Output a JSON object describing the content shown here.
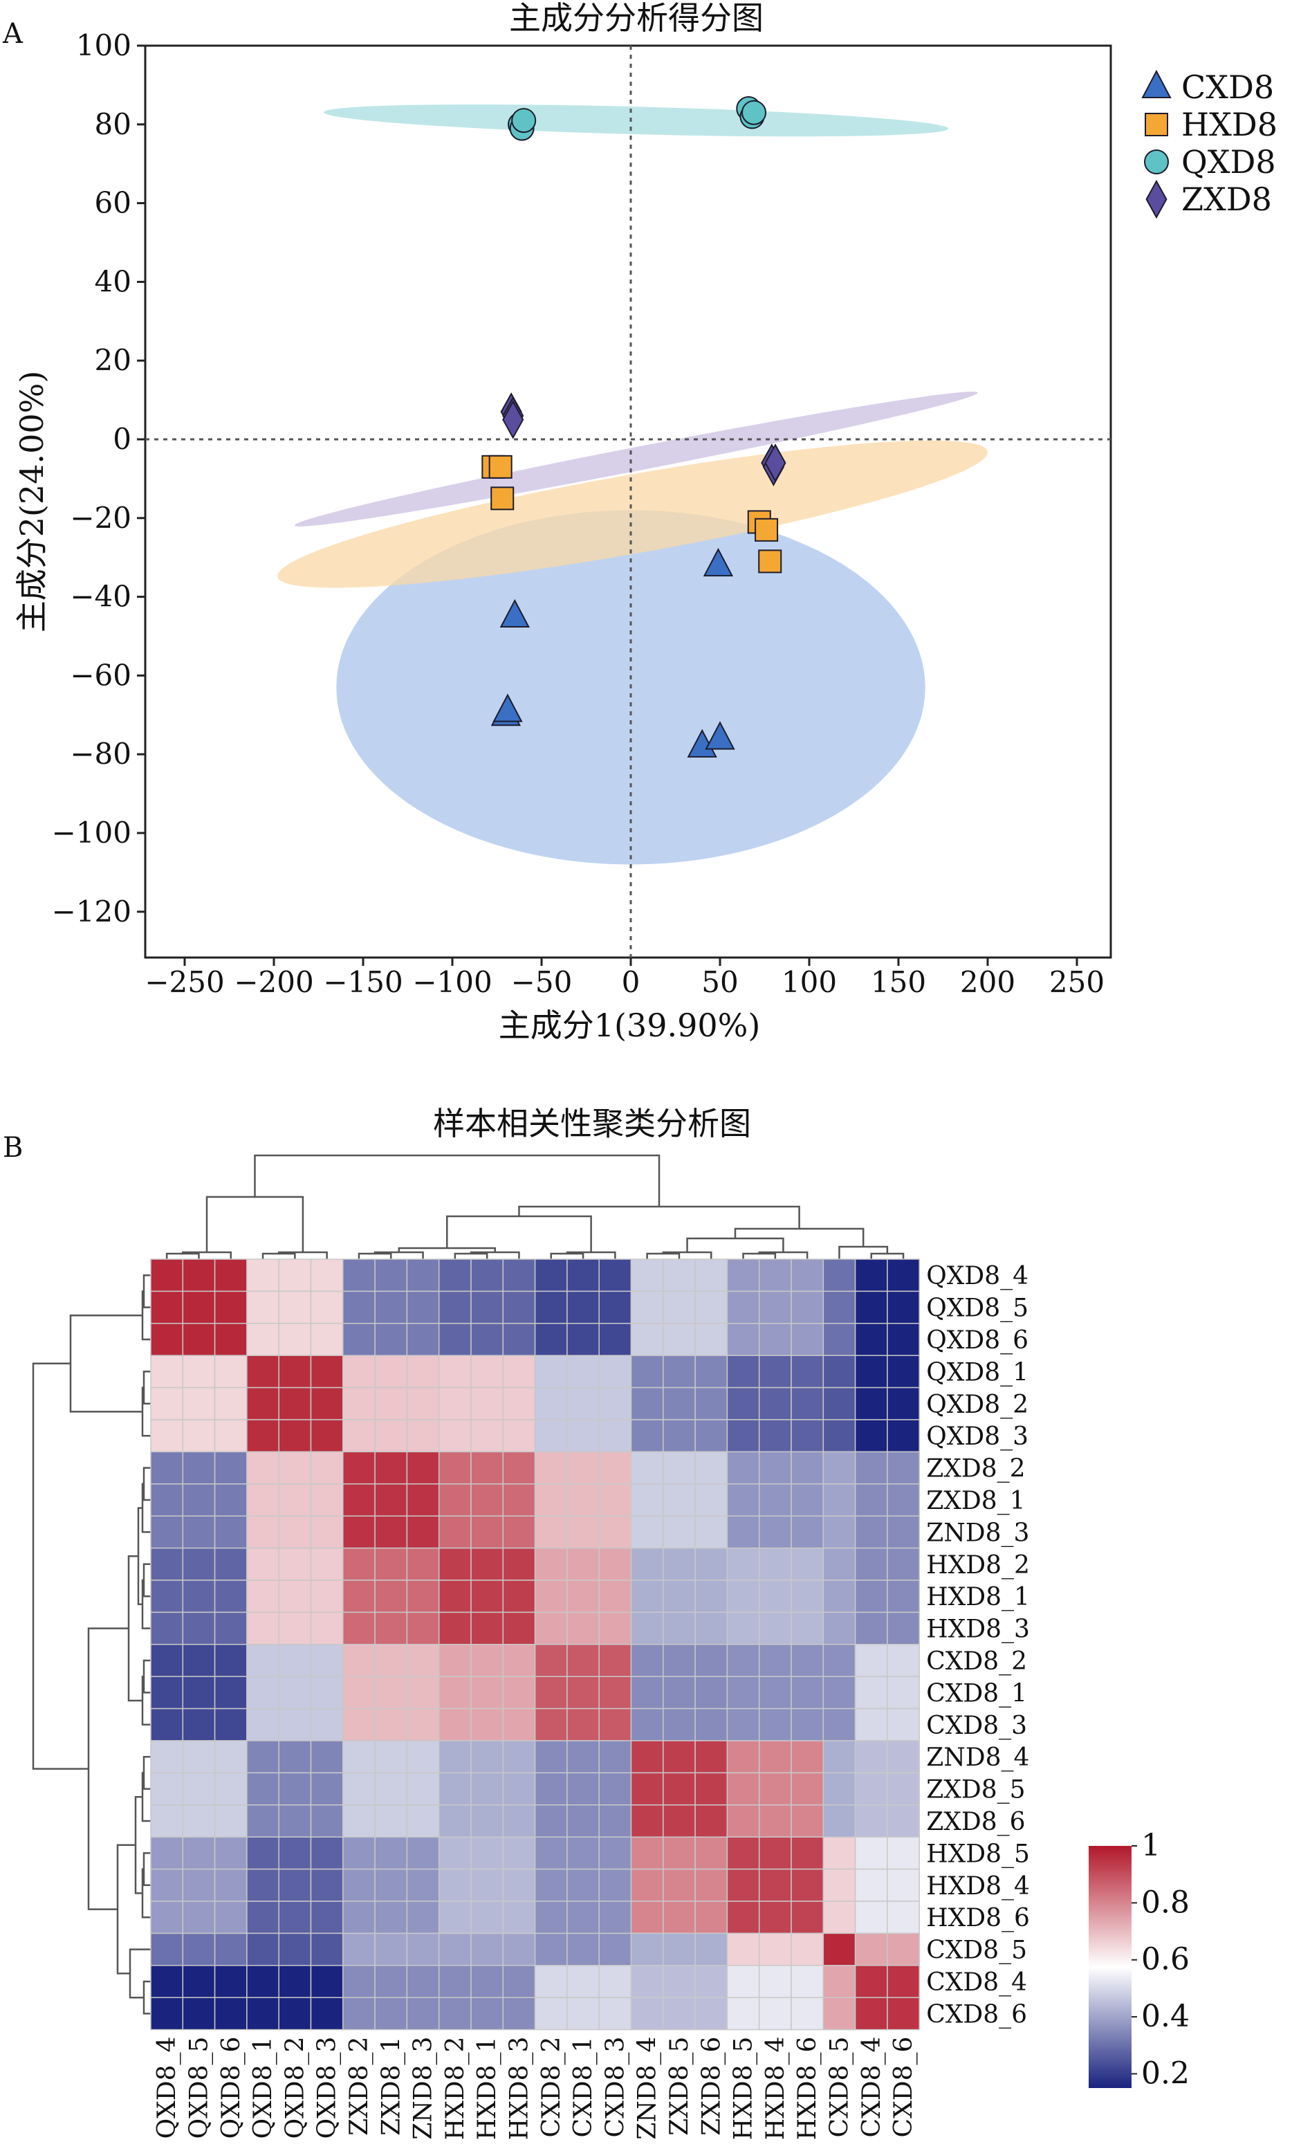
{
  "panel_a": {
    "letter": "A",
    "chart_data": {
      "type": "scatter",
      "title": "主成分分析得分图",
      "xlabel": "主成分1(39.90%)",
      "ylabel": "主成分2(24.00%)",
      "xlim": [
        -270,
        270
      ],
      "ylim": [
        -130,
        100
      ],
      "xticks": [
        -250,
        -200,
        -150,
        -100,
        -50,
        0,
        50,
        100,
        150,
        200,
        250
      ],
      "yticks": [
        -120,
        -100,
        -80,
        -60,
        -40,
        -20,
        0,
        20,
        40,
        60,
        80,
        100
      ],
      "reference_lines": [
        {
          "axis": "x",
          "value": 0,
          "style": "dotted"
        },
        {
          "axis": "y",
          "value": 0,
          "style": "dotted"
        }
      ],
      "legend_position": "right",
      "series": [
        {
          "name": "CXD8",
          "marker": "triangle",
          "color": "#3a6fc4",
          "ellipse_color": "#a9c4ec",
          "points": [
            [
              -65,
              -45
            ],
            [
              -70,
              -70
            ],
            [
              -69,
              -69
            ],
            [
              49,
              -32
            ],
            [
              40,
              -78
            ],
            [
              50,
              -76
            ]
          ]
        },
        {
          "name": "HXD8",
          "marker": "square",
          "color": "#f5a733",
          "ellipse_color": "#f9d8a6",
          "points": [
            [
              -77,
              -7
            ],
            [
              -73,
              -7
            ],
            [
              -72,
              -15
            ],
            [
              72,
              -21
            ],
            [
              76,
              -23
            ],
            [
              78,
              -31
            ]
          ]
        },
        {
          "name": "QXD8",
          "marker": "circle",
          "color": "#5fc3c6",
          "ellipse_color": "#a8dde0",
          "points": [
            [
              -62,
              80
            ],
            [
              -61,
              79
            ],
            [
              -60,
              81
            ],
            [
              66,
              84
            ],
            [
              68,
              82
            ],
            [
              69,
              83
            ]
          ]
        },
        {
          "name": "ZXD8",
          "marker": "diamond",
          "color": "#5a4d9e",
          "ellipse_color": "#cbbfe2",
          "points": [
            [
              -67,
              7
            ],
            [
              -66,
              6
            ],
            [
              -66,
              5
            ],
            [
              79,
              -6
            ],
            [
              80,
              -7
            ],
            [
              81,
              -6
            ]
          ]
        }
      ],
      "ellipses": [
        {
          "series": "CXD8",
          "cx": 0,
          "cy": -63,
          "rx": 165,
          "ry": 45,
          "angle": 0
        },
        {
          "series": "HXD8",
          "cx": 1,
          "cy": -19,
          "rx": 202,
          "ry": 10,
          "angle": -10
        },
        {
          "series": "QXD8",
          "cx": 3,
          "cy": 81,
          "rx": 175,
          "ry": 3.5,
          "angle": 1.5
        },
        {
          "series": "ZXD8",
          "cx": 3,
          "cy": -5,
          "rx": 195,
          "ry": 3,
          "angle": -11
        }
      ]
    }
  },
  "panel_b": {
    "letter": "B",
    "chart_data": {
      "type": "heatmap",
      "title": "样本相关性聚类分析图",
      "row_labels": [
        "QXD8_4",
        "QXD8_5",
        "QXD8_6",
        "QXD8_1",
        "QXD8_2",
        "QXD8_3",
        "ZXD8_2",
        "ZXD8_1",
        "ZND8_3",
        "HXD8_2",
        "HXD8_1",
        "HXD8_3",
        "CXD8_2",
        "CXD8_1",
        "CXD8_3",
        "ZND8_4",
        "ZXD8_5",
        "ZXD8_6",
        "HXD8_5",
        "HXD8_4",
        "HXD8_6",
        "CXD8_5",
        "CXD8_4",
        "CXD8_6"
      ],
      "col_labels": [
        "QXD8_4",
        "QXD8_5",
        "QXD8_6",
        "QXD8_1",
        "QXD8_2",
        "QXD8_3",
        "ZXD8_2",
        "ZXD8_1",
        "ZND8_3",
        "HXD8_2",
        "HXD8_1",
        "HXD8_3",
        "CXD8_2",
        "CXD8_1",
        "CXD8_3",
        "ZND8_4",
        "ZXD8_5",
        "ZXD8_6",
        "HXD8_5",
        "HXD8_4",
        "HXD8_6",
        "CXD8_5",
        "CXD8_4",
        "CXD8_6"
      ],
      "colorbar": {
        "ticks": [
          "1",
          "0.8",
          "0.6",
          "0.4",
          "0.2"
        ],
        "tick_values": [
          1,
          0.8,
          0.6,
          0.4,
          0.2
        ],
        "min": 0.15,
        "max": 1.0,
        "colors": [
          "#1a237e",
          "#ffffff",
          "#b2182b"
        ]
      },
      "block_values": [
        [
          0.97,
          0.65,
          0.32,
          0.28,
          0.22,
          0.48,
          0.38,
          0.3,
          0.15
        ],
        [
          0.65,
          0.96,
          0.68,
          0.67,
          0.47,
          0.34,
          0.27,
          0.25,
          0.15
        ],
        [
          0.32,
          0.68,
          0.95,
          0.85,
          0.7,
          0.48,
          0.37,
          0.4,
          0.35
        ],
        [
          0.28,
          0.67,
          0.85,
          0.93,
          0.74,
          0.42,
          0.44,
          0.4,
          0.35
        ],
        [
          0.22,
          0.47,
          0.7,
          0.74,
          0.88,
          0.35,
          0.36,
          0.36,
          0.5
        ],
        [
          0.48,
          0.34,
          0.48,
          0.42,
          0.35,
          0.93,
          0.8,
          0.42,
          0.45
        ],
        [
          0.38,
          0.27,
          0.37,
          0.44,
          0.36,
          0.8,
          0.92,
          0.66,
          0.53
        ],
        [
          0.3,
          0.25,
          0.4,
          0.4,
          0.36,
          0.42,
          0.66,
          0.97,
          0.74
        ],
        [
          0.15,
          0.15,
          0.35,
          0.35,
          0.5,
          0.45,
          0.53,
          0.74,
          0.95
        ]
      ]
    }
  }
}
